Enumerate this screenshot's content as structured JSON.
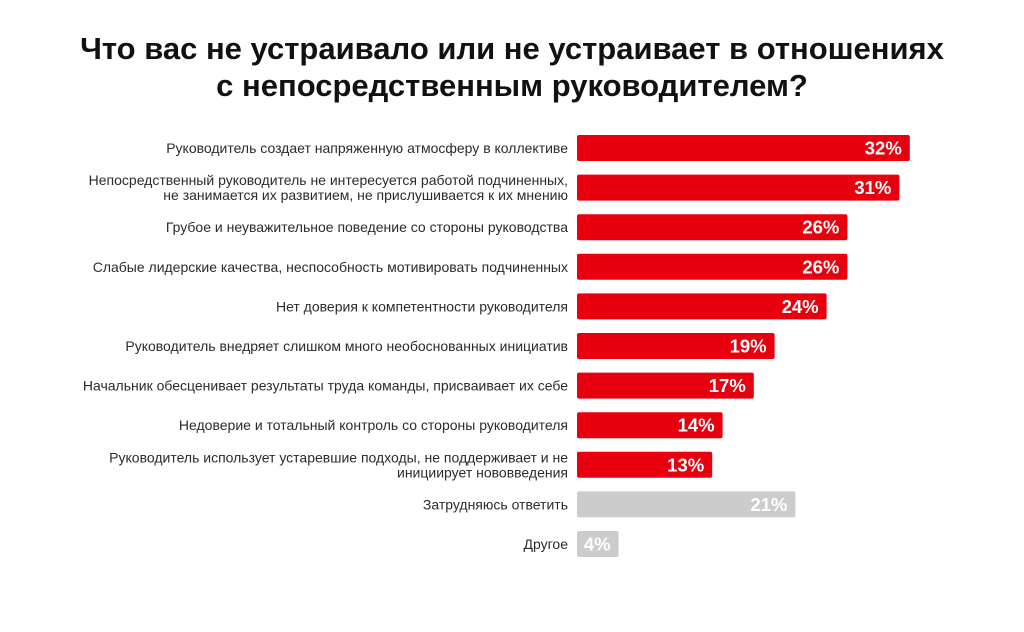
{
  "chart_data": {
    "type": "bar",
    "orientation": "horizontal",
    "title": [
      "Что вас не устраивало или не устраивает в отношениях",
      "с непосредственным руководителем?"
    ],
    "categories": [
      [
        "Руководитель создает напряженную атмосферу в коллективе"
      ],
      [
        "Непосредственный руководитель не интересуется работой подчиненных,",
        "не занимается их развитием, не прислушивается к их мнению"
      ],
      [
        "Грубое и неуважительное поведение со стороны руководства"
      ],
      [
        "Слабые лидерские качества, неспособность мотивировать подчиненных"
      ],
      [
        "Нет доверия к компетентности руководителя"
      ],
      [
        "Руководитель внедряет слишком много необоснованных инициатив"
      ],
      [
        "Начальник обесценивает результаты труда команды, присваивает их себе"
      ],
      [
        "Недоверие и тотальный контроль со стороны руководителя"
      ],
      [
        "Руководитель использует устаревшие подходы, не поддерживает и не",
        "инициирует нововведения"
      ],
      [
        "Затрудняюсь ответить"
      ],
      [
        "Другое"
      ]
    ],
    "values": [
      32,
      31,
      26,
      26,
      24,
      19,
      17,
      14,
      13,
      21,
      4
    ],
    "value_labels": [
      "32%",
      "31%",
      "26%",
      "26%",
      "24%",
      "19%",
      "17%",
      "14%",
      "13%",
      "21%",
      "4%"
    ],
    "bar_colors": [
      "#e8000f",
      "#e8000f",
      "#e8000f",
      "#e8000f",
      "#e8000f",
      "#e8000f",
      "#e8000f",
      "#e8000f",
      "#e8000f",
      "#cccccc",
      "#cccccc"
    ],
    "xlim": [
      0,
      32
    ],
    "grid": false,
    "legend": "none"
  }
}
